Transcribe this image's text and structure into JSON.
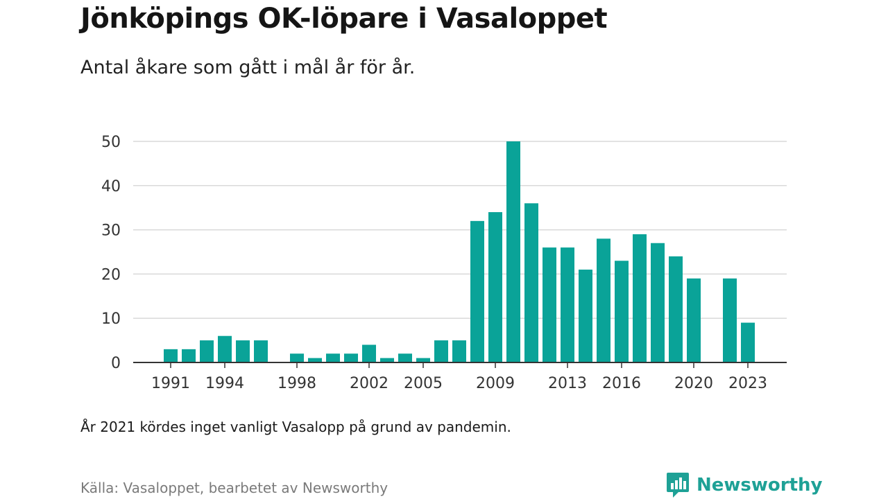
{
  "header": {
    "title": "Jönköpings OK-löpare i Vasaloppet",
    "subtitle": "Antal åkare som gått i mål år för år."
  },
  "footer": {
    "note": "År 2021 kördes inget vanligt Vasalopp på grund av pandemin.",
    "source": "Källa: Vasaloppet, bearbetet av Newsworthy",
    "brand": "Newsworthy",
    "brand_icon": "newsworthy-logo-icon"
  },
  "colors": {
    "bar": "#0aa398",
    "grid": "#d9d9d9",
    "axis": "#333333",
    "brand": "#1ea196"
  },
  "chart_data": {
    "type": "bar",
    "title": "Jönköpings OK-löpare i Vasaloppet",
    "subtitle": "Antal åkare som gått i mål år för år.",
    "xlabel": "",
    "ylabel": "",
    "ylim": [
      0,
      50
    ],
    "yticks": [
      0,
      10,
      20,
      30,
      40,
      50
    ],
    "grid": true,
    "x": [
      1991,
      1992,
      1993,
      1994,
      1995,
      1996,
      1997,
      1998,
      1999,
      2000,
      2001,
      2002,
      2003,
      2004,
      2005,
      2006,
      2007,
      2008,
      2009,
      2010,
      2011,
      2012,
      2013,
      2014,
      2015,
      2016,
      2017,
      2018,
      2019,
      2020,
      2021,
      2022,
      2023
    ],
    "values": [
      3,
      3,
      5,
      6,
      5,
      5,
      0,
      2,
      1,
      2,
      2,
      4,
      1,
      2,
      1,
      5,
      5,
      32,
      34,
      50,
      36,
      26,
      26,
      21,
      28,
      23,
      29,
      27,
      24,
      19,
      0,
      19,
      9
    ],
    "xtick_labels": [
      "1991",
      "1994",
      "1998",
      "2002",
      "2005",
      "2009",
      "2013",
      "2016",
      "2020",
      "2023"
    ]
  }
}
